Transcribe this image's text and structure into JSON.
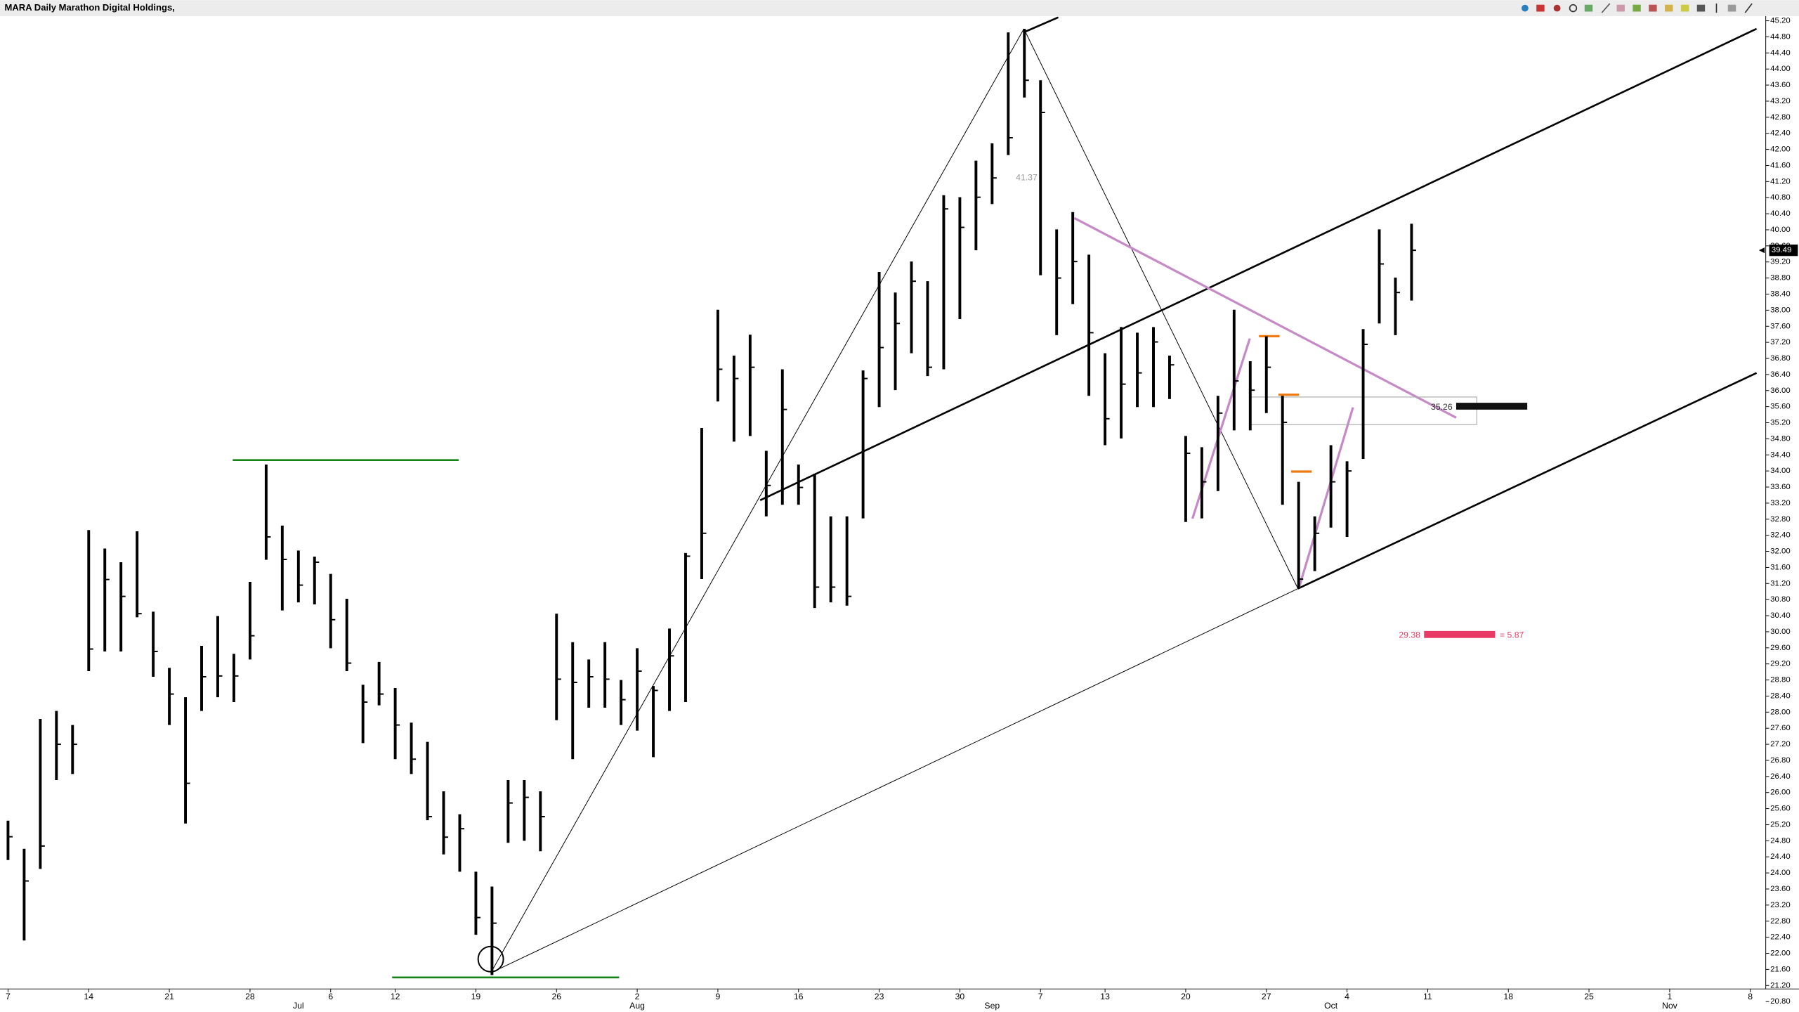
{
  "chart_data": {
    "type": "ohlc",
    "title": "MARA Daily Marathon Digital Holdings,",
    "categories": [
      "7",
      null,
      null,
      null,
      null,
      "14",
      null,
      null,
      null,
      null,
      "21",
      null,
      null,
      null,
      null,
      "28",
      null,
      null,
      null,
      null,
      "6",
      null,
      null,
      null,
      "12",
      null,
      null,
      null,
      null,
      "19",
      null,
      null,
      null,
      null,
      "26",
      null,
      null,
      null,
      null,
      "2",
      null,
      null,
      null,
      null,
      "9",
      null,
      null,
      null,
      null,
      "16",
      null,
      null,
      null,
      null,
      "23",
      null,
      null,
      null,
      null,
      "30",
      null,
      null,
      null,
      null,
      "7",
      null,
      null,
      null,
      "13",
      null,
      null,
      null,
      null,
      "20",
      null,
      null,
      null,
      null,
      "27",
      null,
      null,
      null,
      null,
      "4",
      null,
      null,
      null,
      null,
      "11",
      null,
      null,
      null,
      null,
      "18",
      null,
      null,
      null,
      null,
      "25",
      null,
      null,
      null,
      null,
      "1",
      null,
      null,
      null,
      null,
      "8"
    ],
    "months": [
      null,
      null,
      null,
      null,
      null,
      null,
      null,
      null,
      null,
      null,
      null,
      null,
      null,
      null,
      null,
      null,
      null,
      null,
      "Jul",
      null,
      null,
      null,
      null,
      null,
      null,
      null,
      null,
      null,
      null,
      null,
      null,
      null,
      null,
      null,
      null,
      null,
      null,
      null,
      null,
      "Aug",
      null,
      null,
      null,
      null,
      null,
      null,
      null,
      null,
      null,
      null,
      null,
      null,
      null,
      null,
      null,
      null,
      null,
      null,
      null,
      null,
      null,
      "Sep",
      null,
      null,
      null,
      null,
      null,
      null,
      null,
      null,
      null,
      null,
      null,
      null,
      null,
      null,
      null,
      null,
      null,
      null,
      null,
      null,
      "Oct",
      null,
      null,
      null,
      null,
      null,
      null,
      null,
      null,
      null,
      null,
      null,
      null,
      null,
      null,
      null,
      null,
      null,
      null,
      null,
      null,
      "Nov",
      null,
      null,
      null,
      null,
      null
    ],
    "high": [
      25.3,
      24.6,
      27.83,
      28.03,
      27.68,
      32.53,
      32.07,
      31.73,
      32.5,
      30.5,
      29.1,
      28.37,
      29.65,
      30.39,
      29.45,
      31.24,
      34.16,
      32.64,
      32.02,
      31.87,
      31.44,
      30.82,
      28.68,
      29.25,
      28.6,
      27.74,
      27.26,
      26.03,
      25.46,
      24.03,
      23.66,
      26.31,
      26.31,
      26.03,
      30.45,
      29.74,
      29.31,
      29.74,
      28.8,
      29.59,
      28.65,
      30.08,
      31.96,
      35.07,
      38.01,
      36.87,
      37.39,
      34.5,
      36.53,
      34.16,
      33.93,
      32.87,
      32.87,
      36.5,
      38.95,
      38.44,
      39.21,
      38.72,
      40.86,
      40.81,
      41.72,
      42.15,
      44.91,
      45.0,
      43.72,
      40.01,
      40.44,
      39.38,
      36.93,
      37.58,
      37.44,
      37.58,
      36.87,
      34.87,
      34.59,
      35.87,
      38.01,
      36.73,
      37.35,
      35.87,
      33.73,
      32.87,
      34.64,
      34.24,
      37.53,
      40.01,
      38.81,
      40.15,
      null,
      null,
      null,
      null,
      null,
      null,
      null,
      null,
      null,
      null,
      null,
      null,
      null,
      null,
      null,
      null,
      null,
      null,
      null,
      null,
      null
    ],
    "low": [
      24.32,
      22.32,
      24.1,
      26.31,
      26.46,
      29.02,
      29.51,
      29.51,
      30.36,
      28.88,
      27.68,
      25.23,
      28.03,
      28.37,
      28.25,
      29.31,
      31.79,
      30.53,
      30.73,
      30.68,
      29.59,
      29.02,
      27.23,
      28.17,
      26.83,
      26.46,
      25.31,
      24.46,
      24.03,
      22.46,
      21.46,
      24.75,
      24.8,
      24.54,
      27.8,
      26.83,
      28.11,
      28.11,
      27.68,
      27.54,
      26.88,
      28.03,
      28.25,
      31.31,
      35.73,
      34.73,
      34.87,
      32.87,
      33.16,
      33.16,
      30.59,
      30.73,
      30.65,
      32.82,
      35.59,
      36.01,
      36.93,
      36.36,
      36.53,
      37.78,
      39.49,
      40.64,
      41.86,
      43.29,
      38.87,
      37.38,
      38.15,
      35.87,
      34.64,
      34.81,
      35.59,
      35.59,
      35.79,
      32.73,
      32.82,
      33.5,
      35.01,
      35.01,
      35.44,
      33.16,
      31.08,
      31.51,
      32.59,
      32.36,
      34.3,
      37.67,
      37.38,
      38.24,
      null,
      null,
      null,
      null,
      null,
      null,
      null,
      null,
      null,
      null,
      null,
      null,
      null,
      null,
      null,
      null,
      null,
      null,
      null,
      null,
      null
    ],
    "close": [
      24.9,
      23.8,
      24.67,
      27.2,
      27.2,
      29.57,
      31.3,
      30.88,
      30.45,
      29.51,
      28.45,
      26.23,
      28.88,
      28.9,
      28.9,
      29.9,
      32.36,
      31.8,
      31.16,
      31.73,
      30.3,
      29.22,
      28.25,
      28.45,
      27.68,
      26.83,
      25.4,
      24.89,
      25.1,
      22.89,
      22.75,
      25.74,
      25.88,
      25.4,
      28.82,
      28.74,
      28.88,
      28.82,
      28.31,
      29.02,
      28.54,
      29.4,
      31.88,
      32.45,
      36.53,
      36.3,
      36.58,
      33.64,
      35.53,
      33.59,
      31.11,
      31.11,
      30.88,
      36.3,
      37.07,
      37.67,
      38.72,
      36.58,
      40.52,
      40.06,
      40.81,
      41.29,
      42.29,
      43.72,
      42.92,
      38.8,
      39.21,
      37.44,
      35.3,
      36.16,
      36.44,
      37.21,
      36.64,
      34.44,
      33.73,
      35.44,
      36.24,
      36.01,
      36.58,
      35.21,
      31.31,
      32.45,
      33.73,
      34.0,
      37.15,
      39.15,
      38.44,
      39.49,
      null,
      null,
      null,
      null,
      null,
      null,
      null,
      null,
      null,
      null,
      null,
      null,
      null,
      null,
      null,
      null,
      null,
      null,
      null,
      null,
      null
    ],
    "color": "#000000",
    "last_price": 39.49,
    "annotations": [
      "41.37",
      "35.26",
      "29.38",
      "= 5.87"
    ],
    "ylim": [
      20.8,
      45.2
    ],
    "yticks": [
      {
        "value": 20.8,
        "label": "20.80"
      },
      {
        "value": 21.2,
        "label": "21.20"
      },
      {
        "value": 21.6,
        "label": "21.60"
      },
      {
        "value": 22,
        "label": "22.00"
      },
      {
        "value": 22.4,
        "label": "22.40"
      },
      {
        "value": 22.8,
        "label": "22.80"
      },
      {
        "value": 23.2,
        "label": "23.20"
      },
      {
        "value": 23.6,
        "label": "23.60"
      },
      {
        "value": 24,
        "label": "24.00"
      },
      {
        "value": 24.4,
        "label": "24.40"
      },
      {
        "value": 24.8,
        "label": "24.80"
      },
      {
        "value": 25.2,
        "label": "25.20"
      },
      {
        "value": 25.6,
        "label": "25.60"
      },
      {
        "value": 26,
        "label": "26.00"
      },
      {
        "value": 26.4,
        "label": "26.40"
      },
      {
        "value": 26.8,
        "label": "26.80"
      },
      {
        "value": 27.2,
        "label": "27.20"
      },
      {
        "value": 27.6,
        "label": "27.60"
      },
      {
        "value": 28,
        "label": "28.00"
      },
      {
        "value": 28.4,
        "label": "28.40"
      },
      {
        "value": 28.8,
        "label": "28.80"
      },
      {
        "value": 29.2,
        "label": "29.20"
      },
      {
        "value": 29.6,
        "label": "29.60"
      },
      {
        "value": 30,
        "label": "30.00"
      },
      {
        "value": 30.4,
        "label": "30.40"
      },
      {
        "value": 30.8,
        "label": "30.80"
      },
      {
        "value": 31.2,
        "label": "31.20"
      },
      {
        "value": 31.6,
        "label": "31.60"
      },
      {
        "value": 32,
        "label": "32.00"
      },
      {
        "value": 32.4,
        "label": "32.40"
      },
      {
        "value": 32.8,
        "label": "32.80"
      },
      {
        "value": 33.2,
        "label": "33.20"
      },
      {
        "value": 33.6,
        "label": "33.60"
      },
      {
        "value": 34,
        "label": "34.00"
      },
      {
        "value": 34.4,
        "label": "34.40"
      },
      {
        "value": 34.8,
        "label": "34.80"
      },
      {
        "value": 35.2,
        "label": "35.20"
      },
      {
        "value": 35.6,
        "label": "35.60"
      },
      {
        "value": 36,
        "label": "36.00"
      },
      {
        "value": 36.4,
        "label": "36.40"
      },
      {
        "value": 36.8,
        "label": "36.80"
      },
      {
        "value": 37.2,
        "label": "37.20"
      },
      {
        "value": 37.6,
        "label": "37.60"
      },
      {
        "value": 38,
        "label": "38.00"
      },
      {
        "value": 38.4,
        "label": "38.40"
      },
      {
        "value": 38.8,
        "label": "38.80"
      },
      {
        "value": 39.2,
        "label": "39.20"
      },
      {
        "value": 39.6,
        "label": "39.60"
      },
      {
        "value": 40,
        "label": "40.00"
      },
      {
        "value": 40.4,
        "label": "40.40"
      },
      {
        "value": 40.8,
        "label": "40.80"
      },
      {
        "value": 41.2,
        "label": "41.20"
      },
      {
        "value": 41.6,
        "label": "41.60"
      },
      {
        "value": 42,
        "label": "42.00"
      },
      {
        "value": 42.4,
        "label": "42.40"
      },
      {
        "value": 42.8,
        "label": "42.80"
      },
      {
        "value": 43.2,
        "label": "43.20"
      },
      {
        "value": 43.6,
        "label": "43.60"
      },
      {
        "value": 44,
        "label": "44.00"
      },
      {
        "value": 44.4,
        "label": "44.40"
      },
      {
        "value": 44.8,
        "label": "44.80"
      },
      {
        "value": 45.2,
        "label": "45.20"
      }
    ],
    "grid": false
  }
}
